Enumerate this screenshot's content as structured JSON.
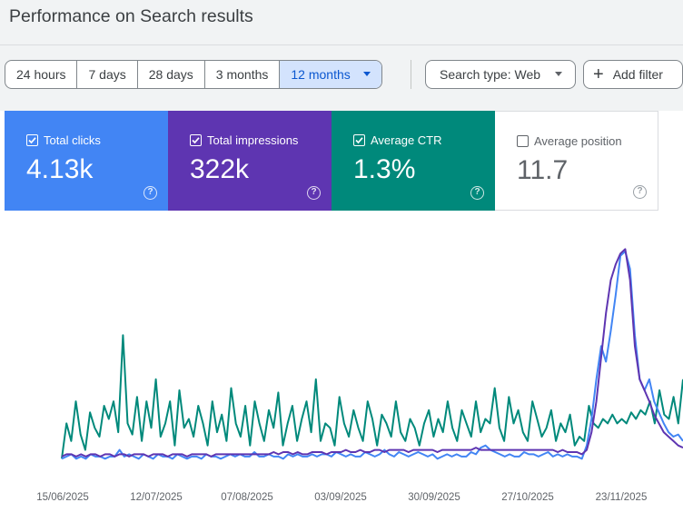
{
  "page": {
    "title": "Performance on Search results"
  },
  "date_filter": {
    "options": [
      "24 hours",
      "7 days",
      "28 days",
      "3 months",
      "12 months"
    ],
    "selected": "12 months"
  },
  "search_type": {
    "label": "Search type: Web",
    "icon": "chevron-down-icon"
  },
  "add_filter": {
    "label": "Add filter",
    "icon": "plus-icon"
  },
  "metrics": [
    {
      "label": "Total clicks",
      "value": "4.13k",
      "checked": true,
      "color": "#4285f4"
    },
    {
      "label": "Total impressions",
      "value": "322k",
      "checked": true,
      "color": "#5e35b1"
    },
    {
      "label": "Average CTR",
      "value": "1.3%",
      "checked": true,
      "color": "#00897b"
    },
    {
      "label": "Average position",
      "value": "11.7",
      "checked": false,
      "color": "#ffffff"
    }
  ],
  "chart_data": {
    "type": "line",
    "x_tick_labels": [
      "15/06/2025",
      "12/07/2025",
      "07/08/2025",
      "03/09/2025",
      "30/09/2025",
      "27/10/2025",
      "23/11/2025"
    ],
    "y_axis_shown": false,
    "grid": false,
    "series": [
      {
        "name": "Total clicks",
        "color": "#4285f4",
        "values": [
          0.04,
          0.05,
          0.06,
          0.04,
          0.05,
          0.04,
          0.06,
          0.05,
          0.05,
          0.04,
          0.05,
          0.05,
          0.08,
          0.05,
          0.06,
          0.05,
          0.04,
          0.06,
          0.05,
          0.04,
          0.06,
          0.05,
          0.05,
          0.04,
          0.06,
          0.05,
          0.04,
          0.05,
          0.05,
          0.04,
          0.06,
          0.05,
          0.05,
          0.04,
          0.05,
          0.06,
          0.05,
          0.06,
          0.05,
          0.05,
          0.07,
          0.05,
          0.05,
          0.06,
          0.05,
          0.05,
          0.04,
          0.06,
          0.05,
          0.06,
          0.05,
          0.05,
          0.06,
          0.05,
          0.06,
          0.06,
          0.05,
          0.07,
          0.06,
          0.05,
          0.06,
          0.05,
          0.05,
          0.07,
          0.06,
          0.05,
          0.06,
          0.08,
          0.06,
          0.05,
          0.07,
          0.06,
          0.05,
          0.06,
          0.07,
          0.06,
          0.05,
          0.06,
          0.04,
          0.05,
          0.06,
          0.05,
          0.06,
          0.05,
          0.05,
          0.07,
          0.06,
          0.09,
          0.1,
          0.08,
          0.07,
          0.06,
          0.05,
          0.06,
          0.05,
          0.05,
          0.07,
          0.06,
          0.06,
          0.05,
          0.06,
          0.07,
          0.05,
          0.06,
          0.05,
          0.06,
          0.05,
          0.05,
          0.04,
          0.1,
          0.22,
          0.4,
          0.55,
          0.48,
          0.62,
          0.78,
          0.96,
          0.98,
          0.9,
          0.6,
          0.4,
          0.35,
          0.4,
          0.3,
          0.25,
          0.2,
          0.16,
          0.14,
          0.15,
          0.12
        ]
      },
      {
        "name": "Total impressions",
        "color": "#5e35b1",
        "values": [
          0.05,
          0.06,
          0.06,
          0.05,
          0.06,
          0.05,
          0.06,
          0.06,
          0.05,
          0.06,
          0.06,
          0.05,
          0.06,
          0.06,
          0.05,
          0.06,
          0.06,
          0.06,
          0.05,
          0.06,
          0.06,
          0.06,
          0.05,
          0.06,
          0.06,
          0.06,
          0.05,
          0.06,
          0.06,
          0.06,
          0.06,
          0.05,
          0.06,
          0.06,
          0.06,
          0.06,
          0.06,
          0.06,
          0.06,
          0.06,
          0.06,
          0.06,
          0.06,
          0.06,
          0.07,
          0.06,
          0.07,
          0.07,
          0.06,
          0.07,
          0.06,
          0.06,
          0.07,
          0.07,
          0.07,
          0.06,
          0.07,
          0.07,
          0.07,
          0.08,
          0.07,
          0.07,
          0.08,
          0.07,
          0.07,
          0.08,
          0.08,
          0.07,
          0.08,
          0.08,
          0.08,
          0.08,
          0.07,
          0.08,
          0.08,
          0.08,
          0.08,
          0.08,
          0.07,
          0.08,
          0.08,
          0.08,
          0.08,
          0.08,
          0.08,
          0.08,
          0.09,
          0.08,
          0.08,
          0.08,
          0.08,
          0.08,
          0.08,
          0.08,
          0.08,
          0.08,
          0.08,
          0.08,
          0.08,
          0.08,
          0.08,
          0.08,
          0.08,
          0.07,
          0.08,
          0.07,
          0.07,
          0.07,
          0.06,
          0.08,
          0.16,
          0.3,
          0.5,
          0.7,
          0.85,
          0.92,
          0.97,
          0.99,
          0.85,
          0.55,
          0.4,
          0.35,
          0.3,
          0.24,
          0.2,
          0.16,
          0.14,
          0.12,
          0.1,
          0.09
        ]
      },
      {
        "name": "Average CTR",
        "color": "#00897b",
        "values": [
          0.04,
          0.2,
          0.12,
          0.3,
          0.15,
          0.08,
          0.25,
          0.18,
          0.14,
          0.28,
          0.22,
          0.3,
          0.16,
          0.6,
          0.2,
          0.15,
          0.32,
          0.12,
          0.3,
          0.18,
          0.4,
          0.14,
          0.2,
          0.3,
          0.1,
          0.35,
          0.18,
          0.22,
          0.14,
          0.28,
          0.2,
          0.1,
          0.3,
          0.16,
          0.24,
          0.12,
          0.36,
          0.2,
          0.14,
          0.28,
          0.1,
          0.3,
          0.2,
          0.12,
          0.26,
          0.18,
          0.34,
          0.1,
          0.2,
          0.28,
          0.12,
          0.22,
          0.3,
          0.16,
          0.4,
          0.12,
          0.2,
          0.18,
          0.1,
          0.32,
          0.2,
          0.14,
          0.26,
          0.18,
          0.12,
          0.3,
          0.22,
          0.1,
          0.24,
          0.2,
          0.14,
          0.3,
          0.16,
          0.12,
          0.22,
          0.18,
          0.1,
          0.2,
          0.26,
          0.14,
          0.22,
          0.16,
          0.3,
          0.18,
          0.12,
          0.26,
          0.2,
          0.14,
          0.3,
          0.16,
          0.22,
          0.2,
          0.36,
          0.18,
          0.12,
          0.32,
          0.2,
          0.26,
          0.16,
          0.12,
          0.3,
          0.22,
          0.14,
          0.18,
          0.26,
          0.12,
          0.2,
          0.16,
          0.24,
          0.1,
          0.14,
          0.12,
          0.28,
          0.2,
          0.18,
          0.22,
          0.2,
          0.24,
          0.2,
          0.22,
          0.2,
          0.25,
          0.22,
          0.26,
          0.24,
          0.3,
          0.2,
          0.35,
          0.24,
          0.22,
          0.32,
          0.2,
          0.4
        ]
      }
    ]
  }
}
